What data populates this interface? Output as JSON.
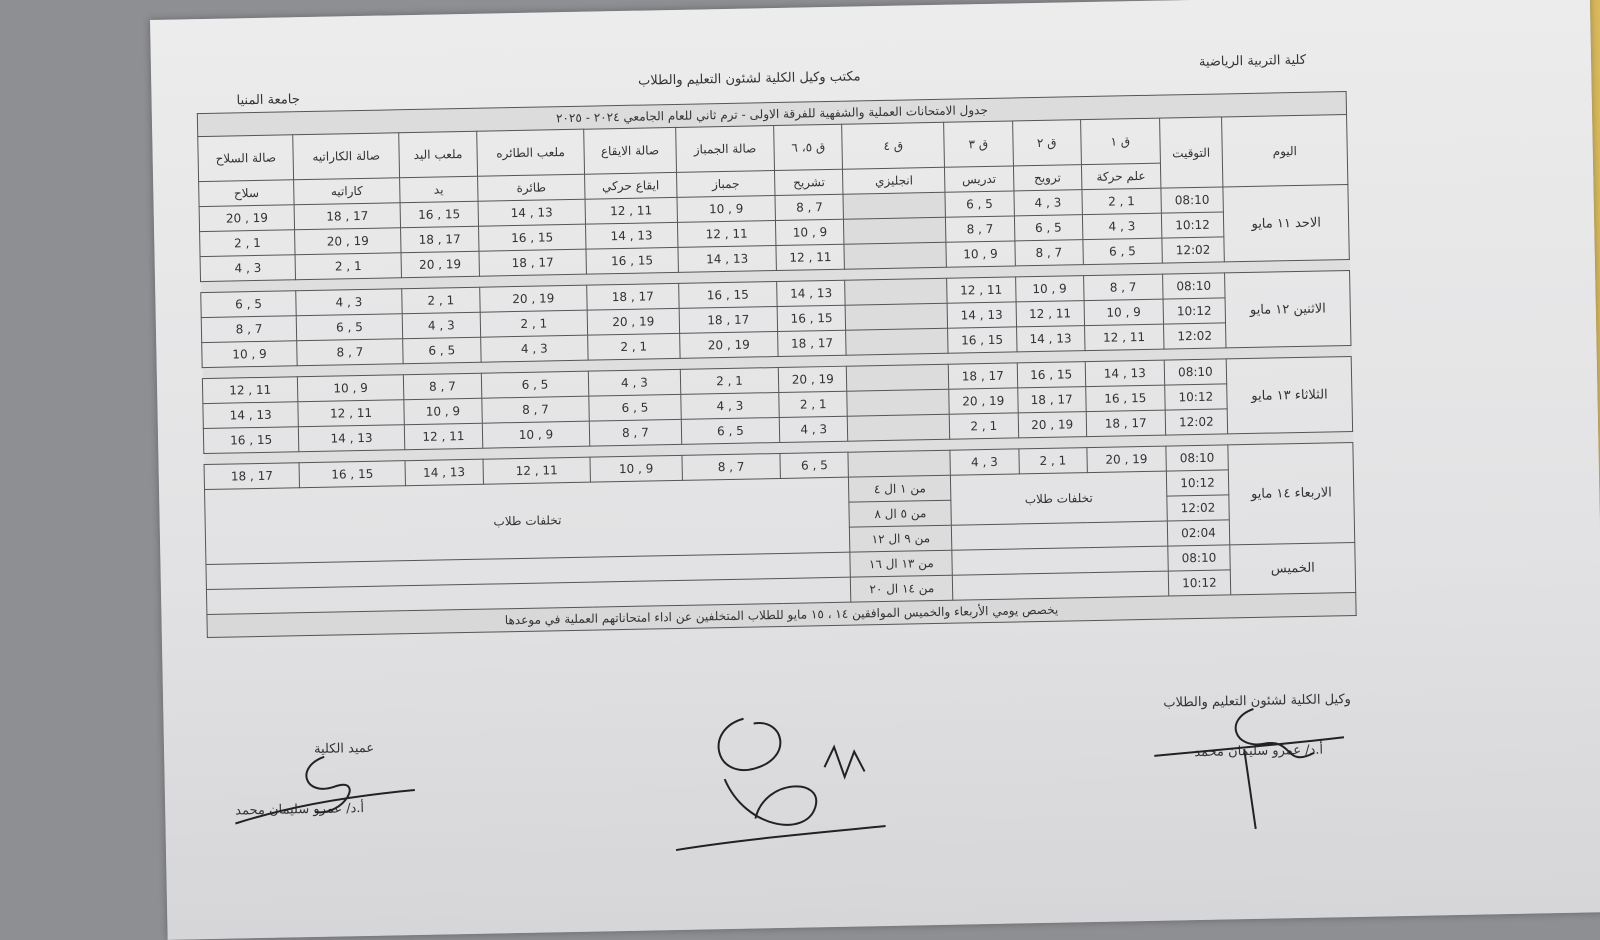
{
  "header": {
    "faculty": "كلية التربية الرياضية",
    "office": "مكتب وكيل الكلية لشئون التعليم والطلاب",
    "university": "جامعة المنيا",
    "title": "جدول الامتحانات العملية والشفهية للفرقة الاولى - ترم ثاني للعام الجامعي ٢٠٢٤ - ٢٠٢٥"
  },
  "columns": [
    {
      "place": "اليوم",
      "subject": ""
    },
    {
      "place": "التوقيت",
      "subject": ""
    },
    {
      "place": "ق ١",
      "subject": "علم حركة"
    },
    {
      "place": "ق ٢",
      "subject": "ترويح"
    },
    {
      "place": "ق ٣",
      "subject": "تدريس"
    },
    {
      "place": "ق ٤",
      "subject": "انجليزي"
    },
    {
      "place": "ق ٥، ٦",
      "subject": "تشريح"
    },
    {
      "place": "صالة الجمباز",
      "subject": "جمباز"
    },
    {
      "place": "صالة الايقاع",
      "subject": "ايقاع حركي"
    },
    {
      "place": "ملعب الطائره",
      "subject": "طائرة"
    },
    {
      "place": "ملعب اليد",
      "subject": "يد"
    },
    {
      "place": "صالة الكاراتيه",
      "subject": "كاراتيه"
    },
    {
      "place": "صالة السلاح",
      "subject": "سلاح"
    }
  ],
  "days": [
    {
      "day": "الاحد ١١ مايو",
      "slots": [
        {
          "time": "08:10",
          "groups": [
            "1 , 2",
            "3 , 4",
            "5 , 6",
            "",
            "7 , 8",
            "9 , 10",
            "11 , 12",
            "13 , 14",
            "15 , 16",
            "17 , 18",
            "19 , 20"
          ]
        },
        {
          "time": "10:12",
          "groups": [
            "3 , 4",
            "5 , 6",
            "7 , 8",
            "",
            "9 , 10",
            "11 , 12",
            "13 , 14",
            "15 , 16",
            "17 , 18",
            "19 , 20",
            "1 , 2"
          ]
        },
        {
          "time": "12:02",
          "groups": [
            "5 , 6",
            "7 , 8",
            "9 , 10",
            "",
            "11 , 12",
            "13 , 14",
            "15 , 16",
            "17 , 18",
            "19 , 20",
            "1 , 2",
            "3 , 4"
          ]
        }
      ]
    },
    {
      "day": "الاثنين ١٢ مايو",
      "slots": [
        {
          "time": "08:10",
          "groups": [
            "7 , 8",
            "9 , 10",
            "11 , 12",
            "",
            "13 , 14",
            "15 , 16",
            "17 , 18",
            "19 , 20",
            "1 , 2",
            "3 , 4",
            "5 , 6"
          ]
        },
        {
          "time": "10:12",
          "groups": [
            "9 , 10",
            "11 , 12",
            "13 , 14",
            "",
            "15 , 16",
            "17 , 18",
            "19 , 20",
            "1 , 2",
            "3 , 4",
            "5 , 6",
            "7 , 8"
          ]
        },
        {
          "time": "12:02",
          "groups": [
            "11 , 12",
            "13 , 14",
            "15 , 16",
            "",
            "17 , 18",
            "19 , 20",
            "1 , 2",
            "3 , 4",
            "5 , 6",
            "7 , 8",
            "9 , 10"
          ]
        }
      ]
    },
    {
      "day": "الثلاثاء ١٣ مايو",
      "slots": [
        {
          "time": "08:10",
          "groups": [
            "13 , 14",
            "15 , 16",
            "17 , 18",
            "",
            "19 , 20",
            "1 , 2",
            "3 , 4",
            "5 , 6",
            "7 , 8",
            "9 , 10",
            "11 , 12"
          ]
        },
        {
          "time": "10:12",
          "groups": [
            "15 , 16",
            "17 , 18",
            "19 , 20",
            "",
            "1 , 2",
            "3 , 4",
            "5 , 6",
            "7 , 8",
            "9 , 10",
            "11 , 12",
            "13 , 14"
          ]
        },
        {
          "time": "12:02",
          "groups": [
            "17 , 18",
            "19 , 20",
            "1 , 2",
            "",
            "3 , 4",
            "5 , 6",
            "7 , 8",
            "9 , 10",
            "11 , 12",
            "13 , 14",
            "15 , 16"
          ]
        }
      ]
    },
    {
      "day": "الاربعاء ١٤ مايو",
      "slots": [
        {
          "time": "08:10",
          "groups": [
            "19 , 20",
            "1 , 2",
            "3 , 4",
            "",
            "5 , 6",
            "7 , 8",
            "9 , 10",
            "11 , 12",
            "13 , 14",
            "15 , 16",
            "17 , 18"
          ]
        }
      ]
    }
  ],
  "makeup": {
    "wednesday_times": [
      "10:12",
      "12:02",
      "02:04"
    ],
    "thursday_day": "الخميس",
    "thursday_times": [
      "08:10",
      "10:12"
    ],
    "label": "تخلفات طلاب",
    "ranges": [
      "من ١ ال ٤",
      "من ٥ ال ٨",
      "من ٩ ال ١٢",
      "من ١٣ ال ١٦",
      "من ١٤ ال ٢٠"
    ]
  },
  "note": "يخصص يومي الأربعاء والخميس الموافقين ١٤ ، ١٥ مايو للطلاب المتخلفين عن اداء امتحاناتهم العملية في موعدها",
  "signatures": {
    "vice_dean_title": "وكيل الكلية لشئون التعليم والطلاب",
    "vice_dean_name": "أ.د/ عمرو سليمان محمد",
    "dean_title": "عميد الكلية",
    "dean_name": "أ.د/ عمرو سليمان محمد"
  }
}
